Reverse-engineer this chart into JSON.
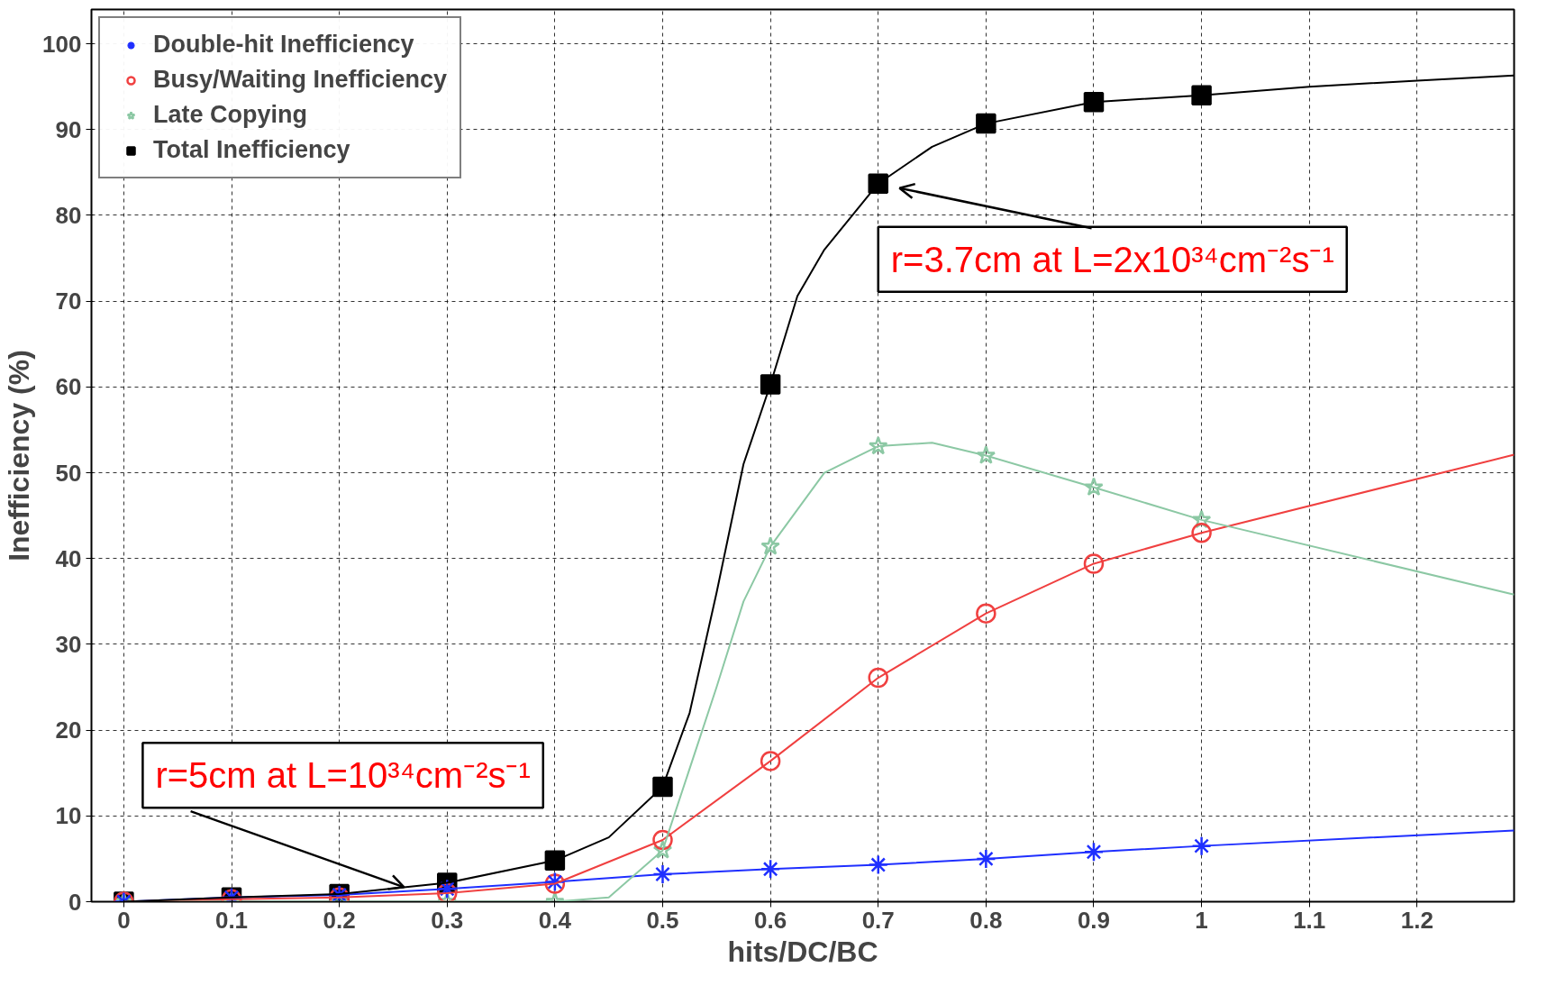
{
  "chart_data": {
    "type": "scatter",
    "xlabel": "hits/DC/BC",
    "ylabel": "Inefficiency (%)",
    "xlim": [
      -0.03,
      1.29
    ],
    "ylim": [
      0,
      104
    ],
    "xticks": [
      0,
      0.1,
      0.2,
      0.3,
      0.4,
      0.5,
      0.6,
      0.7,
      0.8,
      0.9,
      1,
      1.1,
      1.2
    ],
    "yticks": [
      0,
      10,
      20,
      30,
      40,
      50,
      60,
      70,
      80,
      90,
      100
    ],
    "grid": true,
    "legend": "top left",
    "series": [
      {
        "name": "Double-hit Inefficiency",
        "marker": "cross",
        "color": "#1f2fff",
        "x": [
          0,
          0.1,
          0.2,
          0.3,
          0.4,
          0.5,
          0.6,
          0.7,
          0.8,
          0.9,
          1
        ],
        "values": [
          0,
          0.5,
          0.8,
          1.5,
          2.3,
          3.2,
          3.8,
          4.3,
          5,
          5.8,
          6.5
        ]
      },
      {
        "name": "Busy/Waiting Inefficiency",
        "marker": "circle",
        "color": "#f04040",
        "x": [
          0,
          0.1,
          0.2,
          0.3,
          0.4,
          0.5,
          0.6,
          0.7,
          0.8,
          0.9,
          1
        ],
        "values": [
          0,
          0.3,
          0.5,
          1,
          2.1,
          7.2,
          16.4,
          26.1,
          33.6,
          39.4,
          43
        ]
      },
      {
        "name": "Late Copying",
        "marker": "star",
        "color": "#8cc8a4",
        "x": [
          0,
          0.1,
          0.2,
          0.3,
          0.4,
          0.5,
          0.6,
          0.7,
          0.8,
          0.9,
          1
        ],
        "values": [
          0,
          0,
          0,
          0,
          0,
          6,
          41.4,
          53.1,
          52,
          48.3,
          44.5
        ]
      },
      {
        "name": "Total Inefficiency",
        "marker": "square",
        "color": "#000000",
        "x": [
          0,
          0.1,
          0.2,
          0.3,
          0.4,
          0.5,
          0.6,
          0.7,
          0.8,
          0.9,
          1
        ],
        "values": [
          0,
          0.5,
          0.9,
          2.2,
          4.8,
          13.4,
          60.3,
          83.7,
          90.7,
          93.2,
          94
        ]
      },
      {
        "type": "line",
        "color": "#1f2fff",
        "x": [
          0,
          0.1,
          0.2,
          0.3,
          0.4,
          0.5,
          0.6,
          0.7,
          0.8,
          0.9,
          1,
          1.29
        ],
        "values": [
          0,
          0.5,
          0.8,
          1.5,
          2.3,
          3.2,
          3.8,
          4.3,
          5,
          5.8,
          6.5,
          8.3
        ]
      },
      {
        "type": "line",
        "color": "#f04040",
        "x": [
          0,
          0.1,
          0.2,
          0.3,
          0.4,
          0.5,
          0.6,
          0.7,
          0.8,
          0.9,
          1,
          1.29
        ],
        "values": [
          0,
          0.3,
          0.5,
          1,
          2.1,
          7.2,
          16.4,
          26.1,
          33.6,
          39.4,
          43,
          52.1
        ]
      },
      {
        "type": "line",
        "color": "#8cc8a4",
        "x": [
          0,
          0.1,
          0.2,
          0.3,
          0.4,
          0.45,
          0.5,
          0.55,
          0.575,
          0.6,
          0.65,
          0.7,
          0.75,
          0.8,
          0.9,
          1,
          1.29
        ],
        "values": [
          0,
          0,
          0,
          0,
          0,
          0.5,
          6,
          25,
          35,
          41.4,
          50,
          53.1,
          53.5,
          52,
          48.3,
          44.5,
          35.8
        ]
      },
      {
        "type": "line",
        "color": "#000000",
        "x": [
          0,
          0.1,
          0.2,
          0.3,
          0.4,
          0.45,
          0.5,
          0.525,
          0.55,
          0.575,
          0.6,
          0.625,
          0.65,
          0.7,
          0.75,
          0.8,
          0.9,
          1,
          1.1,
          1.2,
          1.29
        ],
        "values": [
          0,
          0.5,
          0.9,
          2.2,
          4.8,
          7.5,
          13.4,
          22,
          36,
          51,
          60.3,
          70.6,
          76,
          83.7,
          88,
          90.7,
          93.2,
          94,
          95,
          95.7,
          96.3
        ]
      }
    ],
    "annotations": [
      {
        "text": "r=3.7cm at L=2x10³⁴cm⁻²s⁻¹",
        "x": 0.7,
        "y": 83.7
      },
      {
        "text": "r=5cm at L=10³⁴cm⁻²s⁻¹",
        "x": 0.26,
        "y": 1.7
      }
    ]
  }
}
